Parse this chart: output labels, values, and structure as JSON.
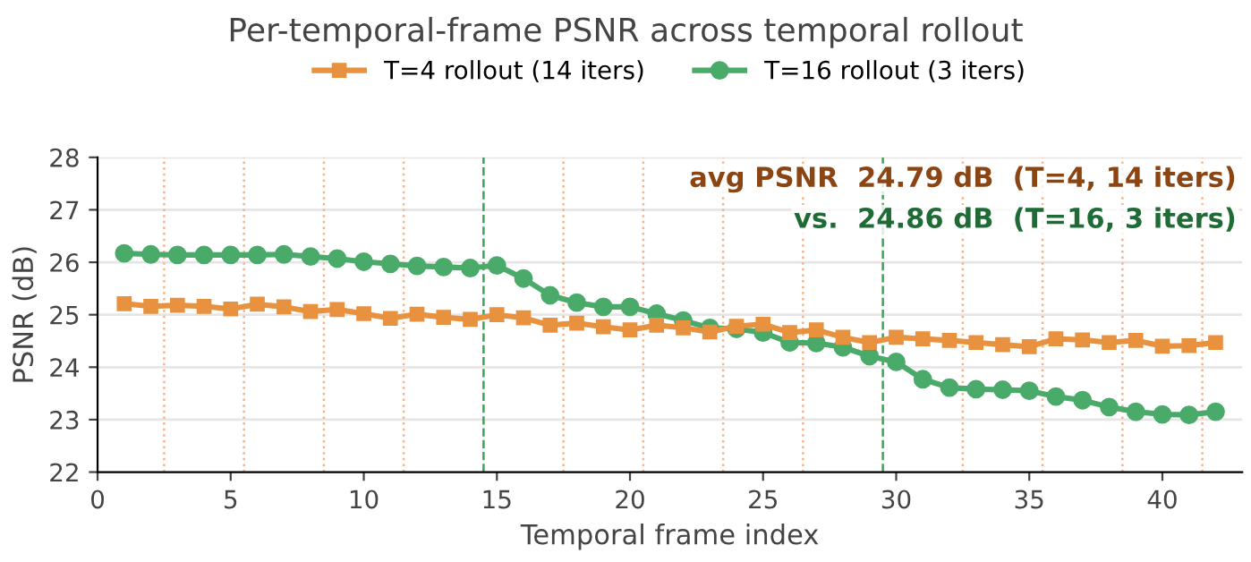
{
  "chart_data": {
    "type": "line",
    "title": "Per-temporal-frame PSNR across temporal rollout",
    "xlabel": "Temporal frame index",
    "ylabel": "PSNR (dB)",
    "x": [
      1,
      2,
      3,
      4,
      5,
      6,
      7,
      8,
      9,
      10,
      11,
      12,
      13,
      14,
      15,
      16,
      17,
      18,
      19,
      20,
      21,
      22,
      23,
      24,
      25,
      26,
      27,
      28,
      29,
      30,
      31,
      32,
      33,
      34,
      35,
      36,
      37,
      38,
      39,
      40,
      41,
      42
    ],
    "series": [
      {
        "name": "T=4 rollout (14 iters)",
        "color": "#e8913f",
        "marker": "square",
        "values": [
          25.21,
          25.16,
          25.18,
          25.16,
          25.11,
          25.2,
          25.15,
          25.06,
          25.1,
          25.02,
          24.93,
          25.01,
          24.95,
          24.91,
          25.0,
          24.94,
          24.8,
          24.84,
          24.77,
          24.71,
          24.8,
          24.75,
          24.67,
          24.78,
          24.82,
          24.66,
          24.71,
          24.57,
          24.47,
          24.57,
          24.54,
          24.51,
          24.47,
          24.43,
          24.39,
          24.54,
          24.52,
          24.47,
          24.51,
          24.4,
          24.41,
          24.47
        ]
      },
      {
        "name": "T=16 rollout (3 iters)",
        "color": "#4aaa6a",
        "marker": "circle",
        "values": [
          26.17,
          26.15,
          26.14,
          26.14,
          26.14,
          26.14,
          26.15,
          26.11,
          26.07,
          26.01,
          25.97,
          25.93,
          25.91,
          25.89,
          25.94,
          25.69,
          25.37,
          25.23,
          25.15,
          25.15,
          25.02,
          24.89,
          24.75,
          24.73,
          24.66,
          24.47,
          24.46,
          24.38,
          24.21,
          24.1,
          23.77,
          23.61,
          23.58,
          23.57,
          23.55,
          23.44,
          23.37,
          23.24,
          23.15,
          23.1,
          23.09,
          23.15
        ]
      }
    ],
    "xlim": [
      0,
      43
    ],
    "xticks": [
      0,
      5,
      10,
      15,
      20,
      25,
      30,
      35,
      40
    ],
    "ylim": [
      22,
      28
    ],
    "yticks": [
      22,
      23,
      24,
      25,
      26,
      27,
      28
    ],
    "ref_lines": [
      {
        "axis": "x",
        "value": 2.5,
        "color": "#f4b48a",
        "line_style": "dotted"
      },
      {
        "axis": "x",
        "value": 5.5,
        "color": "#f4b48a",
        "line_style": "dotted"
      },
      {
        "axis": "x",
        "value": 8.5,
        "color": "#f4b48a",
        "line_style": "dotted"
      },
      {
        "axis": "x",
        "value": 11.5,
        "color": "#f4b48a",
        "line_style": "dotted"
      },
      {
        "axis": "x",
        "value": 14.5,
        "color": "#3aa655",
        "line_style": "dashed"
      },
      {
        "axis": "x",
        "value": 17.5,
        "color": "#f4b48a",
        "line_style": "dotted"
      },
      {
        "axis": "x",
        "value": 20.5,
        "color": "#f4b48a",
        "line_style": "dotted"
      },
      {
        "axis": "x",
        "value": 23.5,
        "color": "#f4b48a",
        "line_style": "dotted"
      },
      {
        "axis": "x",
        "value": 26.5,
        "color": "#f4b48a",
        "line_style": "dotted"
      },
      {
        "axis": "x",
        "value": 29.5,
        "color": "#3aa655",
        "line_style": "dashed"
      },
      {
        "axis": "x",
        "value": 32.5,
        "color": "#f4b48a",
        "line_style": "dotted"
      },
      {
        "axis": "x",
        "value": 35.5,
        "color": "#f4b48a",
        "line_style": "dotted"
      },
      {
        "axis": "x",
        "value": 38.5,
        "color": "#f4b48a",
        "line_style": "dotted"
      },
      {
        "axis": "x",
        "value": 41.5,
        "color": "#f4b48a",
        "line_style": "dotted"
      }
    ],
    "annotations": [
      "avg PSNR  24.79 dB  (T=4, 14 iters)",
      "vs.  24.86 dB  (T=16, 3 iters)"
    ],
    "grid": "y",
    "legend": "top",
    "line_style": "solid"
  }
}
